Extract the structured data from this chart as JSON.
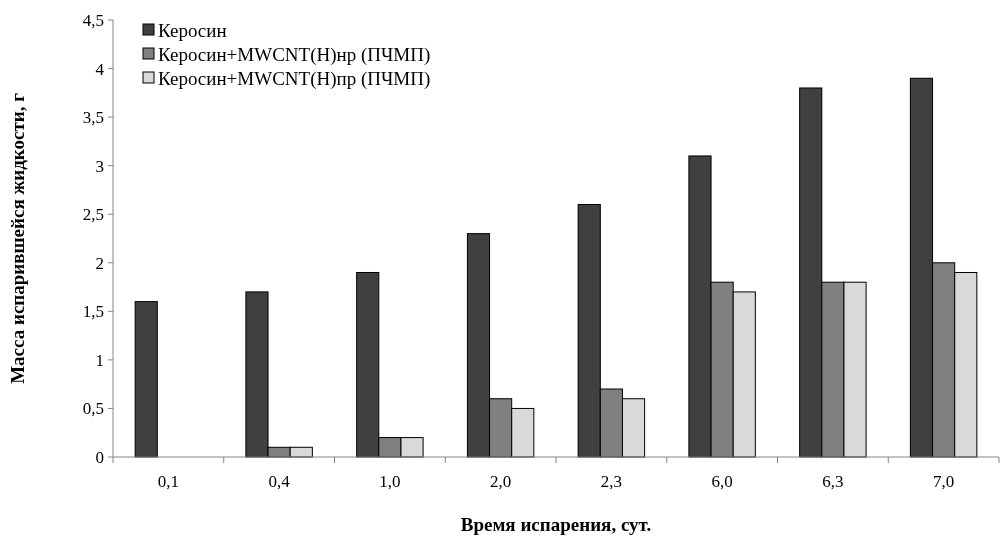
{
  "chart_data": {
    "type": "bar",
    "xlabel": "Время испарения, сут.",
    "ylabel": "Масса испарившейся  жидкости, г",
    "categories": [
      "0,1",
      "0,4",
      "1,0",
      "2,0",
      "2,3",
      "6,0",
      "6,3",
      "7,0"
    ],
    "series": [
      {
        "name": "Керосин",
        "color": "#404040",
        "values": [
          1.6,
          1.7,
          1.9,
          2.3,
          2.6,
          3.1,
          3.8,
          3.9
        ]
      },
      {
        "name": "Керосин+MWCNT(Н)нр (ПЧМП)",
        "color": "#808080",
        "values": [
          0,
          0.1,
          0.2,
          0.6,
          0.7,
          1.8,
          1.8,
          2.0
        ]
      },
      {
        "name": "Керосин+MWCNT(Н)пр (ПЧМП)",
        "color": "#d9d9d9",
        "values": [
          0,
          0.1,
          0.2,
          0.5,
          0.6,
          1.7,
          1.8,
          1.9
        ]
      }
    ],
    "ylim": [
      0,
      4.5
    ],
    "yticks": [
      0,
      {
        "value": 0.5,
        "label": "0,5"
      },
      1,
      {
        "value": 1.5,
        "label": "1,5"
      },
      2,
      {
        "value": 2.5,
        "label": "2,5"
      },
      3,
      {
        "value": 3.5,
        "label": "3,5"
      },
      4,
      {
        "value": 4.5,
        "label": "4,5"
      }
    ],
    "grid": false,
    "legend": "top left"
  }
}
